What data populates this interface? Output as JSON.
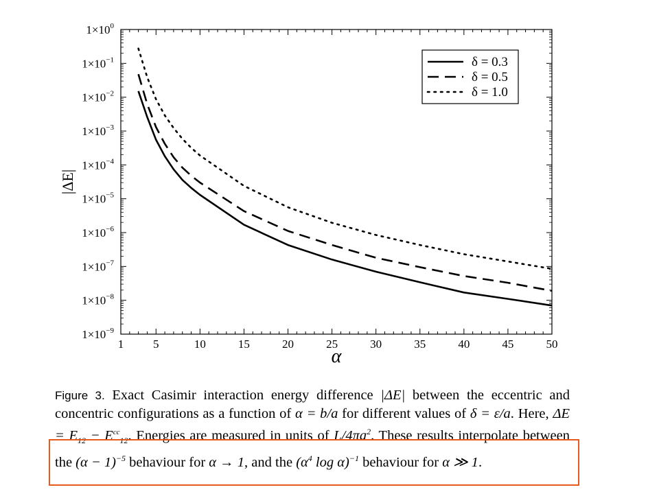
{
  "chart_data": {
    "type": "line",
    "xlabel": "α",
    "ylabel": "|ΔE|",
    "xlim": [
      1,
      50
    ],
    "ylim": [
      1e-09,
      1
    ],
    "yscale": "log",
    "xticks": [
      1,
      5,
      10,
      15,
      20,
      25,
      30,
      35,
      40,
      45,
      50
    ],
    "xtick_labels": [
      "1",
      "5",
      "10",
      "15",
      "20",
      "25",
      "30",
      "35",
      "40",
      "45",
      "50"
    ],
    "ytick_exponents": [
      0,
      -1,
      -2,
      -3,
      -4,
      -5,
      -6,
      -7,
      -8,
      -9
    ],
    "ytick_labels": [
      "1×10",
      "1×10",
      "1×10",
      "1×10",
      "1×10",
      "1×10",
      "1×10",
      "1×10",
      "1×10",
      "1×10"
    ],
    "ytick_sups": [
      "0",
      "−1",
      "−2",
      "−3",
      "−4",
      "−5",
      "−6",
      "−7",
      "−8",
      "−9"
    ],
    "grid": false,
    "legend_position": "top-right",
    "series": [
      {
        "name": "δ = 0.3",
        "style": "solid",
        "x": [
          3,
          4,
          5,
          6,
          7,
          8,
          9,
          10,
          15,
          20,
          25,
          30,
          35,
          40,
          45,
          50
        ],
        "y": [
          0.0151,
          0.0026,
          0.00055,
          0.00018,
          7.4e-05,
          3.6e-05,
          2.1e-05,
          1.3e-05,
          1.7e-06,
          4.3e-07,
          1.6e-07,
          7e-08,
          3.4e-08,
          1.7e-08,
          1.1e-08,
          7e-09
        ]
      },
      {
        "name": "δ = 0.5",
        "style": "dashed",
        "x": [
          3,
          4,
          5,
          6,
          7,
          8,
          9,
          10,
          15,
          20,
          25,
          30,
          35,
          40,
          45,
          50
        ],
        "y": [
          0.0479,
          0.0063,
          0.0013,
          0.00042,
          0.000168,
          8.3e-05,
          4.8e-05,
          3e-05,
          4.3e-06,
          1.12e-06,
          4.3e-07,
          1.8e-07,
          9.5e-08,
          5.2e-08,
          3.3e-08,
          1.9e-08
        ]
      },
      {
        "name": "δ = 1.0",
        "style": "dotted",
        "x": [
          3,
          4,
          5,
          6,
          7,
          8,
          9,
          10,
          15,
          20,
          25,
          30,
          35,
          40,
          45,
          50
        ],
        "y": [
          0.275,
          0.039,
          0.0087,
          0.0029,
          0.00123,
          0.00059,
          0.00032,
          0.00019,
          2.4e-05,
          5.6e-06,
          1.95e-06,
          8.5e-07,
          4.3e-07,
          2.3e-07,
          1.4e-07,
          8.5e-08
        ]
      }
    ]
  },
  "caption": {
    "label": "Figure 3.",
    "text_1": " Exact Casimir interaction energy difference ",
    "text_2": " between the eccentric and concentric configurations as a function of ",
    "text_3": " for different values of ",
    "text_4": ". Here, ",
    "text_5": ". Energies are measured in units of ",
    "text_6": ". These results interpolate between the ",
    "text_7": " behaviour for ",
    "text_8": ", and the ",
    "text_9": " behaviour for ",
    "text_10": ".",
    "m_deltaE": "|ΔE|",
    "m_alpha_def": "α = b/a",
    "m_delta_def": "δ = ε/a",
    "m_deltaE_def_1": "ΔE = E",
    "m_deltaE_def_sub1": "12",
    "m_deltaE_def_2": " − E",
    "m_deltaE_def_sup": "cc",
    "m_deltaE_def_sub2": "12",
    "m_units_1": "L/4πa",
    "m_units_sup": "2",
    "m_behav1_1": "(α − 1)",
    "m_behav1_sup": "−5",
    "m_limit1": "α → 1",
    "m_behav2_1": "(α",
    "m_behav2_sup1": "4",
    "m_behav2_2": " log α)",
    "m_behav2_sup2": "−1",
    "m_limit2": "α ≫ 1"
  },
  "colors": {
    "highlight": "#e85a1b",
    "ink": "#000000"
  }
}
